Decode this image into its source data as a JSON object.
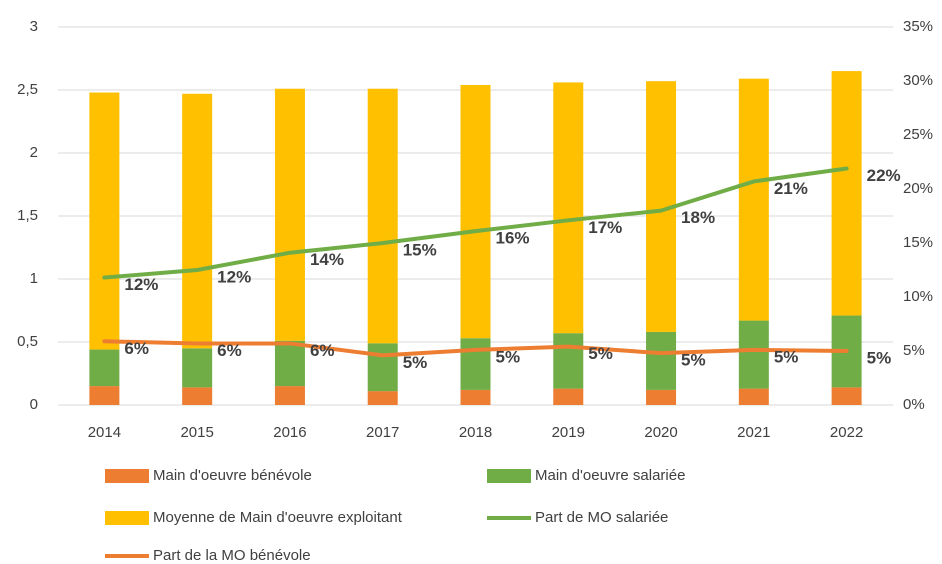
{
  "chart_data": {
    "type": "bar",
    "stacked": true,
    "categories": [
      "2014",
      "2015",
      "2016",
      "2017",
      "2018",
      "2019",
      "2020",
      "2021",
      "2022"
    ],
    "series": [
      {
        "name": "Main d'oeuvre bénévole",
        "type": "bar",
        "axis": "y",
        "color": "#ED7D31",
        "values": [
          0.15,
          0.14,
          0.15,
          0.11,
          0.12,
          0.13,
          0.12,
          0.13,
          0.14
        ]
      },
      {
        "name": "Main d'oeuvre salariée",
        "type": "bar",
        "axis": "y",
        "color": "#70AD47",
        "values": [
          0.29,
          0.31,
          0.36,
          0.38,
          0.41,
          0.44,
          0.46,
          0.54,
          0.57
        ]
      },
      {
        "name": "Moyenne de Main d'oeuvre exploitant",
        "type": "bar",
        "axis": "y",
        "color": "#FFC000",
        "values": [
          2.04,
          2.02,
          2.0,
          2.02,
          2.01,
          1.99,
          1.99,
          1.92,
          1.94
        ]
      },
      {
        "name": "Part de MO salariée",
        "type": "line",
        "axis": "y2",
        "color": "#70AD47",
        "values": [
          11.8,
          12.5,
          14.1,
          15.0,
          16.1,
          17.1,
          18.0,
          20.7,
          21.9
        ],
        "value_labels": [
          "12%",
          "12%",
          "14%",
          "15%",
          "16%",
          "17%",
          "18%",
          "21%",
          "22%"
        ]
      },
      {
        "name": "Part de la MO bénévole",
        "type": "line",
        "axis": "y2",
        "color": "#ED7D31",
        "values": [
          5.9,
          5.7,
          5.7,
          4.6,
          5.1,
          5.4,
          4.8,
          5.1,
          5.0
        ],
        "value_labels": [
          "6%",
          "6%",
          "6%",
          "5%",
          "5%",
          "5%",
          "5%",
          "5%",
          "5%"
        ]
      }
    ],
    "ylim": [
      0,
      3
    ],
    "yticks": [
      0,
      {
        "value": 0.5,
        "label": "0,5"
      },
      1,
      {
        "value": 1.5,
        "label": "1,5"
      },
      2,
      {
        "value": 2.5,
        "label": "2,5"
      },
      3
    ],
    "y2lim": [
      0,
      35
    ],
    "y2ticks": [
      {
        "value": 0,
        "label": "0%"
      },
      {
        "value": 5,
        "label": "5%"
      },
      {
        "value": 10,
        "label": "10%"
      },
      {
        "value": 15,
        "label": "15%"
      },
      {
        "value": 20,
        "label": "20%"
      },
      {
        "value": 25,
        "label": "25%"
      },
      {
        "value": 30,
        "label": "30%"
      },
      {
        "value": 35,
        "label": "35%"
      }
    ],
    "grid": true,
    "legend": "bottom"
  }
}
